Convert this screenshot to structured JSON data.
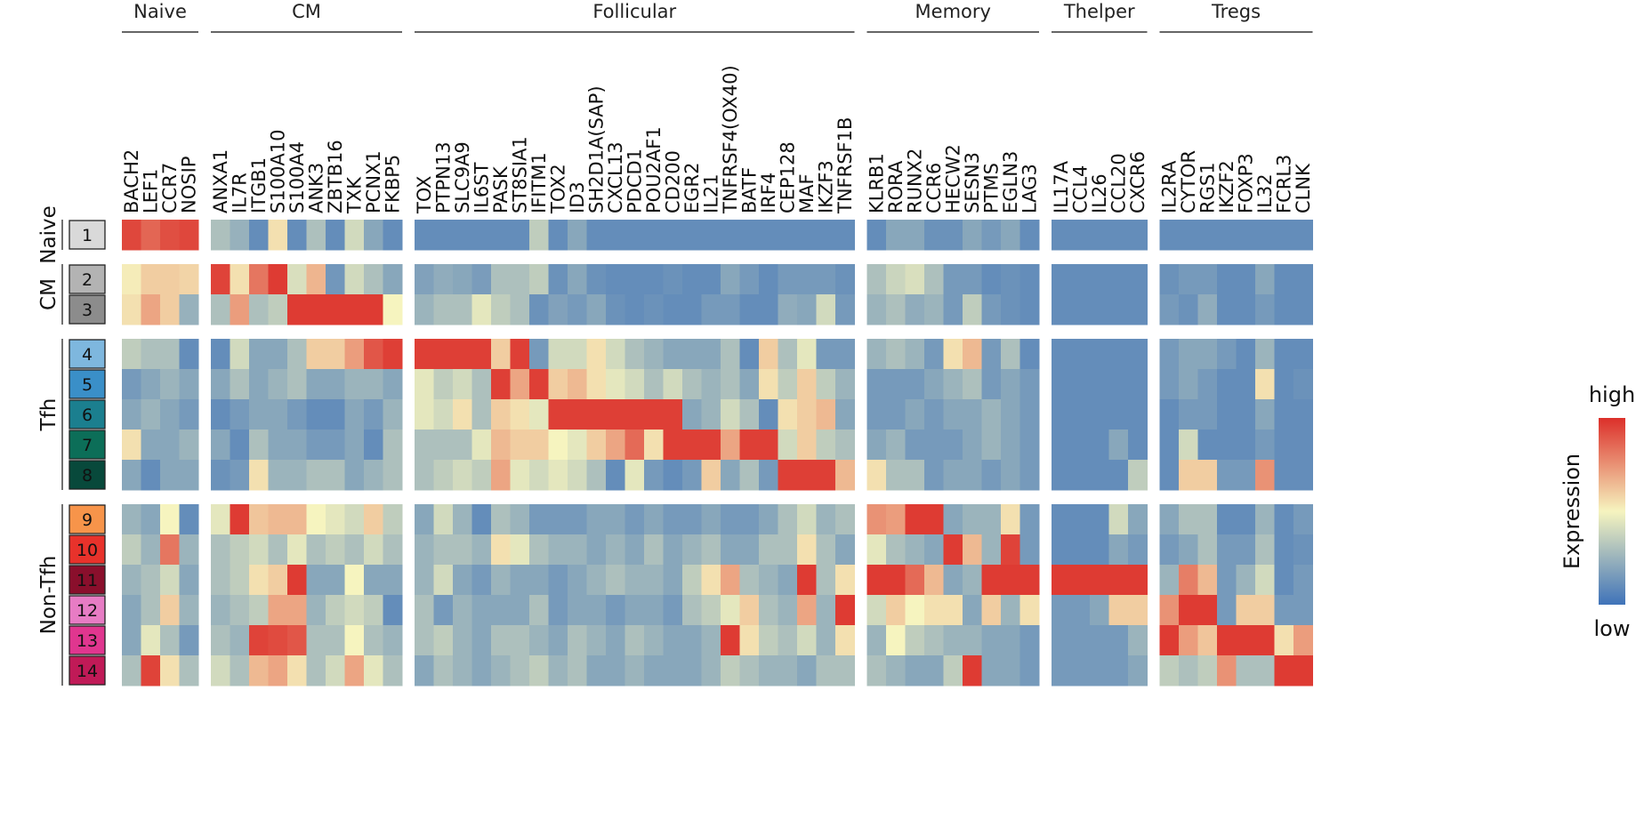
{
  "chart_data": {
    "type": "heatmap",
    "title": "",
    "legend": {
      "title": "Expression",
      "high_label": "high",
      "low_label": "low",
      "position": "right"
    },
    "value_range": [
      0,
      1
    ],
    "colors": {
      "low": "#3f73b9",
      "mid": "#f6f4bf",
      "high": "#dc2f2a"
    },
    "column_groups": [
      {
        "name": "Naive",
        "genes": [
          "BACH2",
          "LEF1",
          "CCR7",
          "NOSIP"
        ]
      },
      {
        "name": "CM",
        "genes": [
          "ANXA1",
          "IL7R",
          "ITGB1",
          "S100A10",
          "S100A4",
          "ANK3",
          "ZBTB16",
          "TXK",
          "PCNX1",
          "FKBP5"
        ]
      },
      {
        "name": "Follicular",
        "genes": [
          "TOX",
          "PTPN13",
          "SLC9A9",
          "IL6ST",
          "PASK",
          "ST8SIA1",
          "IFITM1",
          "TOX2",
          "ID3",
          "SH2D1A(SAP)",
          "CXCL13",
          "PDCD1",
          "POU2AF1",
          "CD200",
          "EGR2",
          "IL21",
          "TNFRSF4(OX40)",
          "BATF",
          "IRF4",
          "CEP128",
          "MAF",
          "IKZF3",
          "TNFRSF1B"
        ]
      },
      {
        "name": "Memory",
        "genes": [
          "KLRB1",
          "RORA",
          "RUNX2",
          "CCR6",
          "HECW2",
          "SESN3",
          "PTMS",
          "EGLN3",
          "LAG3"
        ]
      },
      {
        "name": "Thelper",
        "genes": [
          "IL17A",
          "CCL4",
          "IL26",
          "CCL20",
          "CXCR6"
        ]
      },
      {
        "name": "Tregs",
        "genes": [
          "IL2RA",
          "CYTOR",
          "RGS1",
          "IKZF2",
          "FOXP3",
          "IL32",
          "FCRL3",
          "CLNK"
        ]
      }
    ],
    "row_groups": [
      {
        "name": "Naive",
        "clusters": [
          "1"
        ],
        "cluster_colors": [
          "#d9d9d9"
        ]
      },
      {
        "name": "CM",
        "clusters": [
          "2",
          "3"
        ],
        "cluster_colors": [
          "#b3b3b3",
          "#8c8c8c"
        ]
      },
      {
        "name": "Tfh",
        "clusters": [
          "4",
          "5",
          "6",
          "7",
          "8"
        ],
        "cluster_colors": [
          "#7eb7de",
          "#3a8fc8",
          "#1b7f8f",
          "#0c6e58",
          "#08493b"
        ]
      },
      {
        "name": "Non-Tfh",
        "clusters": [
          "9",
          "10",
          "11",
          "12",
          "13",
          "14"
        ],
        "cluster_colors": [
          "#f7944a",
          "#e8322b",
          "#8a0f2c",
          "#e77cc4",
          "#e0368f",
          "#c01a57"
        ]
      }
    ],
    "rows": [
      {
        "cluster": "1",
        "values": [
          0.94,
          0.86,
          0.92,
          0.94,
          0.3,
          0.24,
          0.1,
          0.55,
          0.1,
          0.3,
          0.1,
          0.4,
          0.2,
          0.1,
          0.1,
          0.1,
          0.1,
          0.1,
          0.1,
          0.1,
          0.35,
          0.1,
          0.2,
          0.1,
          0.1,
          0.1,
          0.1,
          0.1,
          0.1,
          0.1,
          0.1,
          0.1,
          0.1,
          0.1,
          0.1,
          0.1,
          0.1,
          0.1,
          0.2,
          0.2,
          0.12,
          0.12,
          0.2,
          0.15,
          0.2,
          0.1,
          0.1,
          0.1,
          0.1,
          0.1,
          0.1,
          0.1,
          0.1,
          0.1,
          0.1,
          0.1,
          0.1,
          0.1,
          0.1
        ]
      },
      {
        "cluster": "2",
        "values": [
          0.52,
          0.6,
          0.6,
          0.58,
          0.95,
          0.55,
          0.82,
          0.97,
          0.42,
          0.66,
          0.14,
          0.4,
          0.3,
          0.2,
          0.18,
          0.22,
          0.2,
          0.16,
          0.3,
          0.3,
          0.35,
          0.12,
          0.2,
          0.12,
          0.1,
          0.1,
          0.1,
          0.12,
          0.1,
          0.1,
          0.2,
          0.15,
          0.1,
          0.15,
          0.15,
          0.15,
          0.12,
          0.3,
          0.38,
          0.42,
          0.3,
          0.15,
          0.15,
          0.1,
          0.12,
          0.1,
          0.1,
          0.1,
          0.1,
          0.1,
          0.1,
          0.12,
          0.15,
          0.15,
          0.1,
          0.1,
          0.2,
          0.1,
          0.1
        ]
      },
      {
        "cluster": "3",
        "values": [
          0.55,
          0.7,
          0.6,
          0.24,
          0.3,
          0.72,
          0.3,
          0.35,
          0.97,
          0.97,
          0.97,
          0.97,
          0.97,
          0.5,
          0.25,
          0.3,
          0.3,
          0.45,
          0.35,
          0.3,
          0.12,
          0.18,
          0.15,
          0.2,
          0.12,
          0.1,
          0.12,
          0.1,
          0.1,
          0.15,
          0.15,
          0.1,
          0.1,
          0.22,
          0.2,
          0.4,
          0.15,
          0.25,
          0.3,
          0.22,
          0.25,
          0.15,
          0.35,
          0.15,
          0.12,
          0.1,
          0.1,
          0.1,
          0.1,
          0.1,
          0.1,
          0.15,
          0.12,
          0.22,
          0.1,
          0.1,
          0.15,
          0.1,
          0.1
        ]
      },
      {
        "cluster": "4",
        "values": [
          0.35,
          0.3,
          0.3,
          0.1,
          0.1,
          0.4,
          0.2,
          0.2,
          0.3,
          0.6,
          0.6,
          0.72,
          0.9,
          0.96,
          0.96,
          0.96,
          0.96,
          0.96,
          0.6,
          0.96,
          0.15,
          0.4,
          0.4,
          0.55,
          0.4,
          0.3,
          0.25,
          0.2,
          0.2,
          0.2,
          0.3,
          0.1,
          0.6,
          0.3,
          0.45,
          0.15,
          0.15,
          0.25,
          0.3,
          0.25,
          0.15,
          0.55,
          0.65,
          0.15,
          0.3,
          0.1,
          0.1,
          0.1,
          0.1,
          0.1,
          0.1,
          0.15,
          0.2,
          0.2,
          0.15,
          0.1,
          0.25,
          0.1,
          0.1
        ]
      },
      {
        "cluster": "5",
        "values": [
          0.15,
          0.2,
          0.25,
          0.2,
          0.2,
          0.3,
          0.2,
          0.25,
          0.3,
          0.2,
          0.2,
          0.25,
          0.25,
          0.2,
          0.45,
          0.35,
          0.4,
          0.3,
          0.96,
          0.7,
          0.96,
          0.6,
          0.65,
          0.55,
          0.45,
          0.4,
          0.3,
          0.4,
          0.3,
          0.25,
          0.3,
          0.2,
          0.55,
          0.35,
          0.6,
          0.35,
          0.25,
          0.15,
          0.15,
          0.15,
          0.2,
          0.25,
          0.3,
          0.15,
          0.2,
          0.15,
          0.1,
          0.1,
          0.1,
          0.1,
          0.1,
          0.15,
          0.2,
          0.15,
          0.1,
          0.1,
          0.55,
          0.1,
          0.12
        ]
      },
      {
        "cluster": "6",
        "values": [
          0.2,
          0.25,
          0.2,
          0.15,
          0.1,
          0.15,
          0.2,
          0.2,
          0.15,
          0.1,
          0.1,
          0.2,
          0.15,
          0.25,
          0.45,
          0.4,
          0.55,
          0.3,
          0.6,
          0.55,
          0.45,
          0.96,
          0.96,
          0.96,
          0.96,
          0.96,
          0.96,
          0.96,
          0.2,
          0.25,
          0.4,
          0.3,
          0.1,
          0.55,
          0.6,
          0.65,
          0.2,
          0.15,
          0.15,
          0.2,
          0.15,
          0.2,
          0.2,
          0.25,
          0.2,
          0.15,
          0.1,
          0.1,
          0.1,
          0.1,
          0.1,
          0.1,
          0.15,
          0.15,
          0.1,
          0.1,
          0.2,
          0.1,
          0.1
        ]
      },
      {
        "cluster": "7",
        "values": [
          0.55,
          0.2,
          0.2,
          0.25,
          0.2,
          0.1,
          0.3,
          0.2,
          0.2,
          0.15,
          0.15,
          0.2,
          0.1,
          0.3,
          0.3,
          0.3,
          0.3,
          0.45,
          0.65,
          0.6,
          0.6,
          0.5,
          0.45,
          0.6,
          0.7,
          0.85,
          0.55,
          0.96,
          0.96,
          0.96,
          0.7,
          0.96,
          0.96,
          0.4,
          0.6,
          0.35,
          0.3,
          0.2,
          0.25,
          0.15,
          0.15,
          0.15,
          0.2,
          0.25,
          0.2,
          0.15,
          0.1,
          0.1,
          0.1,
          0.2,
          0.1,
          0.1,
          0.4,
          0.1,
          0.1,
          0.1,
          0.15,
          0.1,
          0.1
        ]
      },
      {
        "cluster": "8",
        "values": [
          0.2,
          0.1,
          0.2,
          0.2,
          0.12,
          0.15,
          0.55,
          0.25,
          0.25,
          0.3,
          0.3,
          0.2,
          0.25,
          0.3,
          0.3,
          0.35,
          0.4,
          0.35,
          0.7,
          0.45,
          0.4,
          0.45,
          0.4,
          0.3,
          0.1,
          0.45,
          0.15,
          0.1,
          0.15,
          0.6,
          0.2,
          0.3,
          0.15,
          0.96,
          0.96,
          0.96,
          0.65,
          0.55,
          0.3,
          0.3,
          0.15,
          0.2,
          0.2,
          0.15,
          0.2,
          0.15,
          0.1,
          0.1,
          0.1,
          0.1,
          0.35,
          0.1,
          0.6,
          0.6,
          0.15,
          0.15,
          0.75,
          0.1,
          0.1
        ]
      },
      {
        "cluster": "9",
        "values": [
          0.25,
          0.2,
          0.5,
          0.1,
          0.45,
          0.97,
          0.62,
          0.65,
          0.65,
          0.5,
          0.45,
          0.4,
          0.6,
          0.35,
          0.2,
          0.4,
          0.25,
          0.1,
          0.3,
          0.25,
          0.15,
          0.15,
          0.15,
          0.2,
          0.2,
          0.15,
          0.2,
          0.15,
          0.15,
          0.2,
          0.15,
          0.15,
          0.2,
          0.3,
          0.4,
          0.25,
          0.3,
          0.75,
          0.72,
          0.97,
          0.97,
          0.2,
          0.25,
          0.25,
          0.55,
          0.15,
          0.1,
          0.1,
          0.1,
          0.4,
          0.2,
          0.2,
          0.3,
          0.3,
          0.1,
          0.1,
          0.25,
          0.1,
          0.15
        ]
      },
      {
        "cluster": "10",
        "values": [
          0.35,
          0.25,
          0.82,
          0.25,
          0.3,
          0.35,
          0.4,
          0.3,
          0.45,
          0.3,
          0.35,
          0.3,
          0.4,
          0.3,
          0.25,
          0.3,
          0.3,
          0.25,
          0.55,
          0.45,
          0.3,
          0.25,
          0.25,
          0.2,
          0.25,
          0.2,
          0.3,
          0.2,
          0.25,
          0.3,
          0.2,
          0.2,
          0.3,
          0.3,
          0.55,
          0.3,
          0.2,
          0.45,
          0.3,
          0.25,
          0.2,
          0.97,
          0.65,
          0.25,
          0.95,
          0.15,
          0.1,
          0.1,
          0.1,
          0.2,
          0.15,
          0.15,
          0.2,
          0.3,
          0.15,
          0.15,
          0.3,
          0.1,
          0.12
        ]
      },
      {
        "cluster": "11",
        "values": [
          0.25,
          0.3,
          0.4,
          0.2,
          0.3,
          0.35,
          0.55,
          0.6,
          0.97,
          0.2,
          0.2,
          0.5,
          0.2,
          0.2,
          0.25,
          0.4,
          0.2,
          0.15,
          0.25,
          0.2,
          0.2,
          0.15,
          0.2,
          0.25,
          0.3,
          0.25,
          0.25,
          0.2,
          0.35,
          0.55,
          0.7,
          0.3,
          0.25,
          0.2,
          0.97,
          0.3,
          0.55,
          0.97,
          0.97,
          0.85,
          0.65,
          0.2,
          0.25,
          0.97,
          0.97,
          0.97,
          0.97,
          0.97,
          0.97,
          0.97,
          0.97,
          0.25,
          0.8,
          0.65,
          0.15,
          0.25,
          0.4,
          0.1,
          0.15
        ]
      },
      {
        "cluster": "12",
        "values": [
          0.2,
          0.3,
          0.6,
          0.25,
          0.25,
          0.3,
          0.35,
          0.7,
          0.7,
          0.25,
          0.35,
          0.4,
          0.35,
          0.1,
          0.3,
          0.15,
          0.25,
          0.2,
          0.2,
          0.2,
          0.3,
          0.15,
          0.2,
          0.2,
          0.15,
          0.2,
          0.2,
          0.15,
          0.3,
          0.35,
          0.45,
          0.6,
          0.3,
          0.25,
          0.7,
          0.25,
          0.97,
          0.4,
          0.6,
          0.5,
          0.55,
          0.55,
          0.2,
          0.6,
          0.25,
          0.55,
          0.15,
          0.15,
          0.2,
          0.6,
          0.6,
          0.75,
          0.97,
          0.97,
          0.15,
          0.6,
          0.6,
          0.15,
          0.15
        ]
      },
      {
        "cluster": "13",
        "values": [
          0.2,
          0.45,
          0.3,
          0.15,
          0.3,
          0.25,
          0.95,
          0.93,
          0.9,
          0.3,
          0.3,
          0.5,
          0.3,
          0.25,
          0.3,
          0.35,
          0.25,
          0.2,
          0.3,
          0.3,
          0.25,
          0.2,
          0.3,
          0.25,
          0.2,
          0.3,
          0.25,
          0.2,
          0.2,
          0.25,
          0.97,
          0.55,
          0.35,
          0.3,
          0.4,
          0.25,
          0.55,
          0.25,
          0.5,
          0.35,
          0.3,
          0.25,
          0.25,
          0.2,
          0.2,
          0.15,
          0.15,
          0.15,
          0.15,
          0.15,
          0.25,
          0.97,
          0.72,
          0.62,
          0.97,
          0.97,
          0.97,
          0.55,
          0.72
        ]
      },
      {
        "cluster": "14",
        "values": [
          0.3,
          0.95,
          0.55,
          0.3,
          0.4,
          0.3,
          0.65,
          0.7,
          0.55,
          0.3,
          0.4,
          0.7,
          0.45,
          0.3,
          0.2,
          0.3,
          0.25,
          0.2,
          0.25,
          0.3,
          0.35,
          0.25,
          0.3,
          0.2,
          0.2,
          0.25,
          0.2,
          0.2,
          0.2,
          0.25,
          0.35,
          0.3,
          0.25,
          0.25,
          0.2,
          0.3,
          0.3,
          0.3,
          0.25,
          0.2,
          0.2,
          0.35,
          0.97,
          0.2,
          0.2,
          0.15,
          0.15,
          0.15,
          0.15,
          0.15,
          0.2,
          0.35,
          0.3,
          0.35,
          0.75,
          0.3,
          0.3,
          0.97,
          0.97
        ]
      }
    ]
  }
}
